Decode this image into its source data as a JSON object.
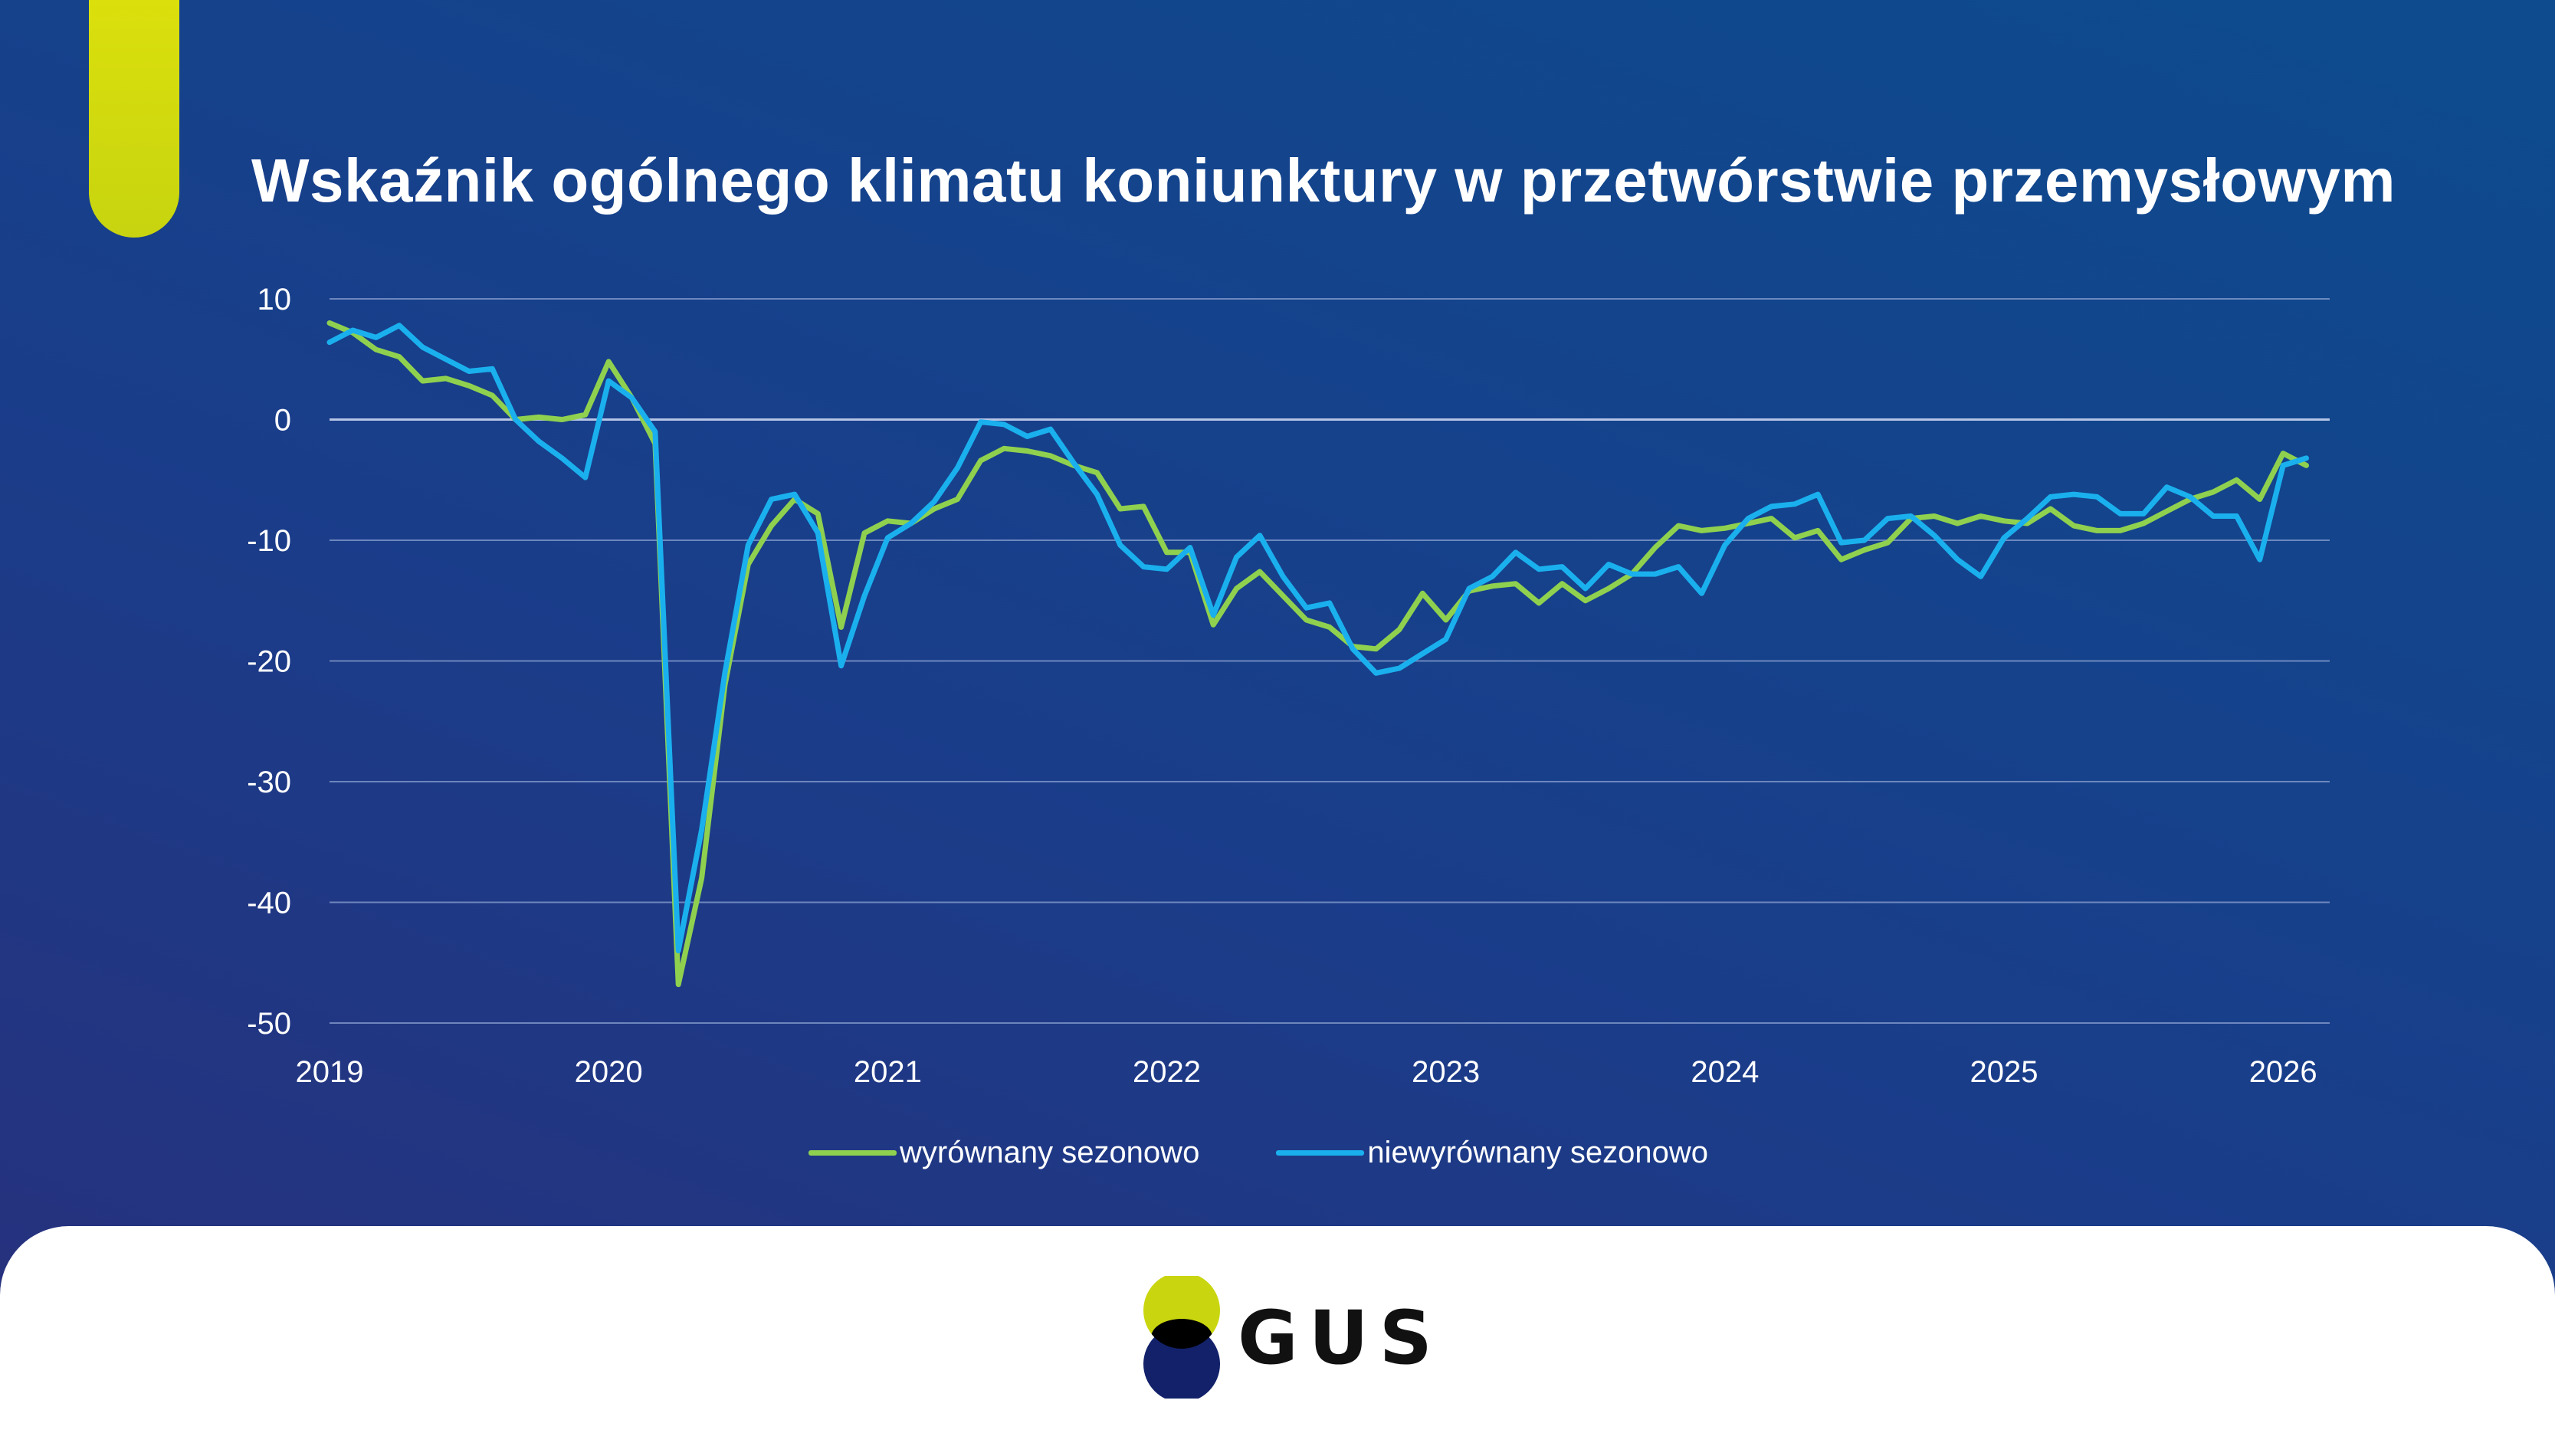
{
  "title": "Wskaźnik ogólnego klimatu koniunktury w przetwórstwie przemysłowym",
  "logo": {
    "text": "GUS"
  },
  "colors": {
    "accent": "#d6dc0e",
    "series_sa": "#8fd14f",
    "series_nsa": "#1ab0ee",
    "grid": "#8aa0cf",
    "logo_yellow": "#c9d60f",
    "logo_navy": "#12216a"
  },
  "chart_data": {
    "type": "line",
    "title": "Wskaźnik ogólnego klimatu koniunktury w przetwórstwie przemysłowym",
    "xlabel": "",
    "ylabel": "",
    "xlim": [
      2019,
      2026.167
    ],
    "ylim": [
      -50,
      10
    ],
    "yticks": [
      10,
      0,
      -10,
      -20,
      -30,
      -40,
      -50
    ],
    "xticks": [
      2019,
      2020,
      2021,
      2022,
      2023,
      2024,
      2025,
      2026
    ],
    "grid": true,
    "legend_position": "bottom",
    "x_start": "2019-01",
    "x_step": "month",
    "series": [
      {
        "name": "wyrównany sezonowo",
        "values": [
          8.0,
          7.2,
          5.8,
          5.2,
          3.2,
          3.4,
          2.8,
          2.0,
          0.0,
          0.2,
          0.0,
          0.4,
          4.8,
          1.8,
          -2.0,
          -46.8,
          -38.0,
          -22.0,
          -12.0,
          -8.8,
          -6.6,
          -7.8,
          -17.2,
          -9.4,
          -8.4,
          -8.6,
          -7.4,
          -6.6,
          -3.4,
          -2.4,
          -2.6,
          -3.0,
          -3.8,
          -4.4,
          -7.4,
          -7.2,
          -11.0,
          -11.0,
          -17.0,
          -14.0,
          -12.6,
          -14.6,
          -16.6,
          -17.2,
          -18.8,
          -19.0,
          -17.4,
          -14.4,
          -16.6,
          -14.2,
          -13.8,
          -13.6,
          -15.2,
          -13.6,
          -15.0,
          -14.0,
          -12.8,
          -10.6,
          -8.8,
          -9.2,
          -9.0,
          -8.6,
          -8.2,
          -9.8,
          -9.2,
          -11.6,
          -10.8,
          -10.2,
          -8.2,
          -8.0,
          -8.6,
          -8.0,
          -8.4,
          -8.6,
          -7.4,
          -8.8,
          -9.2,
          -9.2,
          -8.6,
          -7.6,
          -6.6,
          -6.0,
          -5.0,
          -6.6,
          -2.8,
          -3.8
        ]
      },
      {
        "name": "niewyrównany sezonowo",
        "values": [
          6.4,
          7.4,
          6.8,
          7.8,
          6.0,
          5.0,
          4.0,
          4.2,
          0.0,
          -1.8,
          -3.2,
          -4.8,
          3.2,
          1.8,
          -1.0,
          -44.0,
          -34.0,
          -21.0,
          -10.4,
          -6.6,
          -6.2,
          -9.4,
          -20.4,
          -14.6,
          -9.8,
          -8.6,
          -6.8,
          -4.0,
          -0.2,
          -0.4,
          -1.4,
          -0.8,
          -3.6,
          -6.2,
          -10.4,
          -12.2,
          -12.4,
          -10.6,
          -16.2,
          -11.4,
          -9.6,
          -13.0,
          -15.6,
          -15.2,
          -19.0,
          -21.0,
          -20.6,
          -19.4,
          -18.2,
          -14.0,
          -13.0,
          -11.0,
          -12.4,
          -12.2,
          -14.0,
          -12.0,
          -12.8,
          -12.8,
          -12.2,
          -14.4,
          -10.4,
          -8.2,
          -7.2,
          -7.0,
          -6.2,
          -10.2,
          -10.0,
          -8.2,
          -8.0,
          -9.6,
          -11.6,
          -13.0,
          -9.8,
          -8.2,
          -6.4,
          -6.2,
          -6.4,
          -7.8,
          -7.8,
          -5.6,
          -6.4,
          -8.0,
          -8.0,
          -11.6,
          -3.8,
          -3.2
        ]
      }
    ]
  }
}
